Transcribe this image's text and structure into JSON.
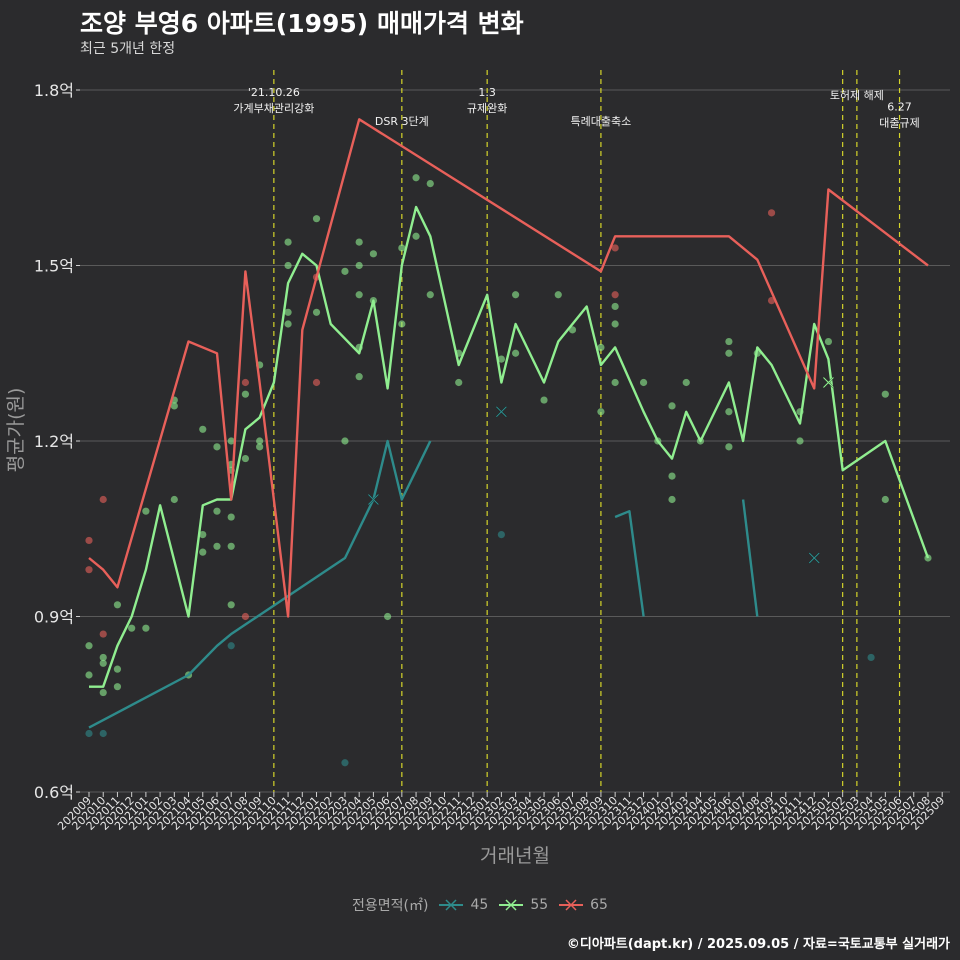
{
  "title": "조양 부영6 아파트(1995) 매매가격 변화",
  "subtitle": "최근 5개년 한정",
  "caption": "©디아파트(dapt.kr) / 2025.09.05 / 자료=국토교통부 실거래가",
  "legend_title": "전용면적(㎡)",
  "colors": {
    "45": "#2e8b8b",
    "55": "#90ee90",
    "65": "#e8605a",
    "policy": "#d4d42a",
    "grid": "#5a5a5a"
  },
  "chart_data": {
    "type": "line",
    "xlabel": "거래년월",
    "ylabel": "평균가(원)",
    "ylim": [
      0.6,
      1.8
    ],
    "y_ticks": [
      0.6,
      0.9,
      1.2,
      1.5,
      1.8
    ],
    "y_tick_labels": [
      "0.6억",
      "0.9억",
      "1.2억",
      "1.5억",
      "1.8억"
    ],
    "categories": [
      "202009",
      "202010",
      "202011",
      "202012",
      "202101",
      "202102",
      "202103",
      "202104",
      "202105",
      "202106",
      "202107",
      "202108",
      "202109",
      "202110",
      "202111",
      "202112",
      "202201",
      "202202",
      "202203",
      "202204",
      "202205",
      "202206",
      "202207",
      "202208",
      "202209",
      "202210",
      "202211",
      "202212",
      "202301",
      "202302",
      "202303",
      "202304",
      "202305",
      "202306",
      "202307",
      "202308",
      "202309",
      "202310",
      "202311",
      "202312",
      "202401",
      "202402",
      "202403",
      "202404",
      "202405",
      "202406",
      "202407",
      "202408",
      "202409",
      "202410",
      "202411",
      "202412",
      "202501",
      "202502",
      "202503",
      "202504",
      "202505",
      "202506",
      "202507",
      "202508",
      "202509"
    ],
    "series": [
      {
        "name": "45",
        "segments": [
          [
            [
              "202009",
              0.71
            ],
            [
              "202104",
              0.8
            ],
            [
              "202106",
              0.85
            ],
            [
              "202107",
              0.87
            ],
            [
              "202203",
              1.0
            ],
            [
              "202205",
              1.1
            ],
            [
              "202206",
              1.2
            ],
            [
              "202207",
              1.1
            ],
            [
              "202208",
              1.15
            ],
            [
              "202209",
              1.2
            ]
          ],
          [
            [
              "202310",
              1.07
            ],
            [
              "202311",
              1.08
            ],
            [
              "202312",
              0.9
            ]
          ],
          [
            [
              "202407",
              1.1
            ],
            [
              "202408",
              0.9
            ]
          ]
        ],
        "markers": [
          [
            "202205",
            1.1
          ],
          [
            "202302",
            1.25
          ],
          [
            "202412",
            1.0
          ]
        ]
      },
      {
        "name": "55",
        "segments": [
          [
            [
              "202009",
              0.78
            ],
            [
              "202010",
              0.78
            ],
            [
              "202011",
              0.85
            ],
            [
              "202012",
              0.9
            ],
            [
              "202101",
              0.98
            ],
            [
              "202102",
              1.09
            ],
            [
              "202104",
              0.9
            ],
            [
              "202105",
              1.09
            ],
            [
              "202106",
              1.1
            ],
            [
              "202107",
              1.1
            ],
            [
              "202108",
              1.22
            ],
            [
              "202109",
              1.24
            ],
            [
              "202110",
              1.3
            ],
            [
              "202111",
              1.47
            ],
            [
              "202112",
              1.52
            ],
            [
              "202201",
              1.5
            ],
            [
              "202202",
              1.4
            ],
            [
              "202204",
              1.35
            ],
            [
              "202205",
              1.44
            ],
            [
              "202206",
              1.29
            ],
            [
              "202207",
              1.5
            ],
            [
              "202208",
              1.6
            ],
            [
              "202209",
              1.55
            ],
            [
              "202210",
              1.44
            ],
            [
              "202211",
              1.33
            ],
            [
              "202301",
              1.45
            ],
            [
              "202302",
              1.3
            ],
            [
              "202303",
              1.4
            ],
            [
              "202305",
              1.3
            ],
            [
              "202306",
              1.37
            ],
            [
              "202307",
              1.4
            ],
            [
              "202308",
              1.43
            ],
            [
              "202309",
              1.33
            ],
            [
              "202310",
              1.36
            ],
            [
              "202312",
              1.25
            ],
            [
              "202401",
              1.2
            ],
            [
              "202402",
              1.17
            ],
            [
              "202403",
              1.25
            ],
            [
              "202404",
              1.2
            ],
            [
              "202406",
              1.3
            ],
            [
              "202407",
              1.2
            ],
            [
              "202408",
              1.36
            ],
            [
              "202409",
              1.33
            ],
            [
              "202411",
              1.23
            ],
            [
              "202412",
              1.4
            ],
            [
              "202501",
              1.34
            ],
            [
              "202502",
              1.15
            ],
            [
              "202505",
              1.2
            ],
            [
              "202508",
              1.0
            ]
          ]
        ],
        "markers": [
          [
            "202501",
            1.3
          ]
        ]
      },
      {
        "name": "65",
        "segments": [
          [
            [
              "202009",
              1.0
            ],
            [
              "202010",
              0.98
            ],
            [
              "202011",
              0.95
            ],
            [
              "202104",
              1.37
            ],
            [
              "202106",
              1.35
            ],
            [
              "202107",
              1.1
            ],
            [
              "202108",
              1.49
            ],
            [
              "202109",
              1.3
            ],
            [
              "202111",
              0.9
            ],
            [
              "202112",
              1.39
            ],
            [
              "202204",
              1.75
            ],
            [
              "202309",
              1.49
            ],
            [
              "202310",
              1.55
            ],
            [
              "202406",
              1.55
            ],
            [
              "202408",
              1.51
            ],
            [
              "202412",
              1.29
            ],
            [
              "202501",
              1.63
            ],
            [
              "202508",
              1.5
            ]
          ]
        ],
        "markers": []
      }
    ],
    "scatter": [
      {
        "series": "45",
        "points": [
          [
            "202009",
            0.7
          ],
          [
            "202010",
            0.7
          ],
          [
            "202107",
            0.85
          ],
          [
            "202203",
            0.65
          ],
          [
            "202302",
            1.04
          ],
          [
            "202504",
            0.83
          ]
        ]
      },
      {
        "series": "55",
        "points": [
          [
            "202009",
            0.8
          ],
          [
            "202009",
            0.85
          ],
          [
            "202010",
            0.77
          ],
          [
            "202010",
            0.82
          ],
          [
            "202010",
            0.83
          ],
          [
            "202011",
            0.78
          ],
          [
            "202011",
            0.81
          ],
          [
            "202011",
            0.92
          ],
          [
            "202012",
            0.88
          ],
          [
            "202101",
            0.88
          ],
          [
            "202101",
            1.08
          ],
          [
            "202103",
            1.27
          ],
          [
            "202103",
            1.26
          ],
          [
            "202103",
            1.1
          ],
          [
            "202104",
            0.8
          ],
          [
            "202105",
            1.22
          ],
          [
            "202105",
            1.04
          ],
          [
            "202105",
            1.01
          ],
          [
            "202106",
            1.08
          ],
          [
            "202106",
            1.02
          ],
          [
            "202106",
            1.19
          ],
          [
            "202107",
            1.2
          ],
          [
            "202107",
            1.15
          ],
          [
            "202107",
            1.16
          ],
          [
            "202107",
            1.07
          ],
          [
            "202107",
            1.02
          ],
          [
            "202107",
            0.92
          ],
          [
            "202108",
            1.28
          ],
          [
            "202108",
            1.17
          ],
          [
            "202109",
            1.33
          ],
          [
            "202109",
            1.19
          ],
          [
            "202109",
            1.2
          ],
          [
            "202111",
            1.54
          ],
          [
            "202111",
            1.5
          ],
          [
            "202111",
            1.42
          ],
          [
            "202111",
            1.4
          ],
          [
            "202201",
            1.58
          ],
          [
            "202201",
            1.42
          ],
          [
            "202203",
            1.49
          ],
          [
            "202203",
            1.2
          ],
          [
            "202204",
            1.54
          ],
          [
            "202204",
            1.5
          ],
          [
            "202204",
            1.45
          ],
          [
            "202204",
            1.36
          ],
          [
            "202204",
            1.31
          ],
          [
            "202205",
            1.52
          ],
          [
            "202205",
            1.44
          ],
          [
            "202206",
            0.9
          ],
          [
            "202207",
            1.53
          ],
          [
            "202207",
            1.4
          ],
          [
            "202208",
            1.65
          ],
          [
            "202208",
            1.55
          ],
          [
            "202209",
            1.64
          ],
          [
            "202209",
            1.45
          ],
          [
            "202211",
            1.35
          ],
          [
            "202211",
            1.3
          ],
          [
            "202302",
            1.34
          ],
          [
            "202303",
            1.45
          ],
          [
            "202303",
            1.35
          ],
          [
            "202305",
            1.27
          ],
          [
            "202306",
            1.45
          ],
          [
            "202307",
            1.39
          ],
          [
            "202309",
            1.36
          ],
          [
            "202309",
            1.25
          ],
          [
            "202310",
            1.43
          ],
          [
            "202310",
            1.3
          ],
          [
            "202310",
            1.4
          ],
          [
            "202312",
            1.3
          ],
          [
            "202401",
            1.2
          ],
          [
            "202402",
            1.14
          ],
          [
            "202402",
            1.1
          ],
          [
            "202402",
            1.26
          ],
          [
            "202403",
            1.3
          ],
          [
            "202404",
            1.2
          ],
          [
            "202406",
            1.37
          ],
          [
            "202406",
            1.35
          ],
          [
            "202406",
            1.25
          ],
          [
            "202406",
            1.19
          ],
          [
            "202408",
            1.35
          ],
          [
            "202411",
            1.25
          ],
          [
            "202411",
            1.2
          ],
          [
            "202501",
            1.37
          ],
          [
            "202505",
            1.28
          ],
          [
            "202505",
            1.1
          ],
          [
            "202508",
            1.0
          ]
        ]
      },
      {
        "series": "65",
        "points": [
          [
            "202009",
            1.03
          ],
          [
            "202009",
            0.98
          ],
          [
            "202010",
            1.1
          ],
          [
            "202010",
            0.87
          ],
          [
            "202108",
            1.3
          ],
          [
            "202108",
            0.9
          ],
          [
            "202201",
            1.48
          ],
          [
            "202201",
            1.3
          ],
          [
            "202310",
            1.53
          ],
          [
            "202310",
            1.45
          ],
          [
            "202409",
            1.59
          ],
          [
            "202409",
            1.44
          ]
        ]
      }
    ],
    "events": [
      {
        "x": "202110",
        "label": "'21.10.26\n가계부채관리강화",
        "label_y": 1.79
      },
      {
        "x": "202207",
        "label": "DSR 3단계",
        "label_y": 1.74
      },
      {
        "x": "202301",
        "label": "1.3\n규제완화",
        "label_y": 1.79
      },
      {
        "x": "202309",
        "label": "특례대출축소",
        "label_y": 1.74
      },
      {
        "x": "202502",
        "label": "",
        "label_y": 1.79
      },
      {
        "x": "202503",
        "label": "토허제 해제",
        "label_y": 1.785
      },
      {
        "x": "202506",
        "label": "6.27\n대출규제",
        "label_y": 1.765
      }
    ],
    "legend": [
      "45",
      "55",
      "65"
    ],
    "grid": true
  }
}
